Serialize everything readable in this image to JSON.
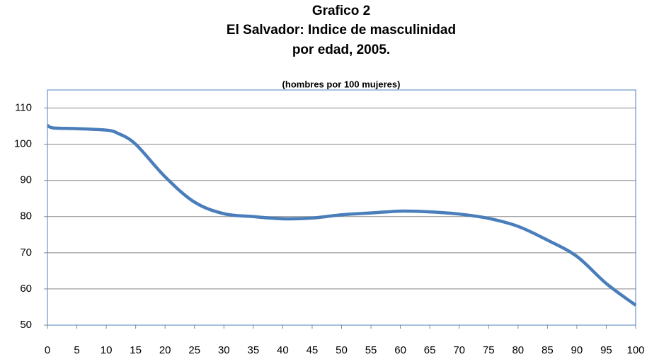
{
  "chart_data": {
    "type": "line",
    "title": [
      "Grafico 2",
      "El Salvador: Indice de masculinidad",
      "por edad,  2005."
    ],
    "subtitle": "(hombres por 100 mujeres)",
    "x": [
      0,
      1,
      5,
      10,
      12,
      15,
      20,
      25,
      30,
      35,
      40,
      45,
      50,
      55,
      60,
      65,
      70,
      75,
      80,
      85,
      90,
      95,
      100
    ],
    "series": [
      {
        "name": "Indice de masculinidad",
        "color": "#4a7ebb",
        "values": [
          105.2,
          104.5,
          104.3,
          103.9,
          103,
          100,
          91,
          84,
          80.8,
          80,
          79.4,
          79.6,
          80.5,
          81,
          81.5,
          81.3,
          80.7,
          79.5,
          77.3,
          73.5,
          69,
          61.5,
          55.5
        ]
      }
    ],
    "xlim": [
      0,
      100
    ],
    "xticks": [
      0,
      5,
      10,
      15,
      20,
      25,
      30,
      35,
      40,
      45,
      50,
      55,
      60,
      65,
      70,
      75,
      80,
      85,
      90,
      95,
      100
    ],
    "ylim": [
      50,
      115
    ],
    "yticks": [
      50,
      60,
      70,
      80,
      90,
      100,
      110
    ],
    "grid": true
  }
}
